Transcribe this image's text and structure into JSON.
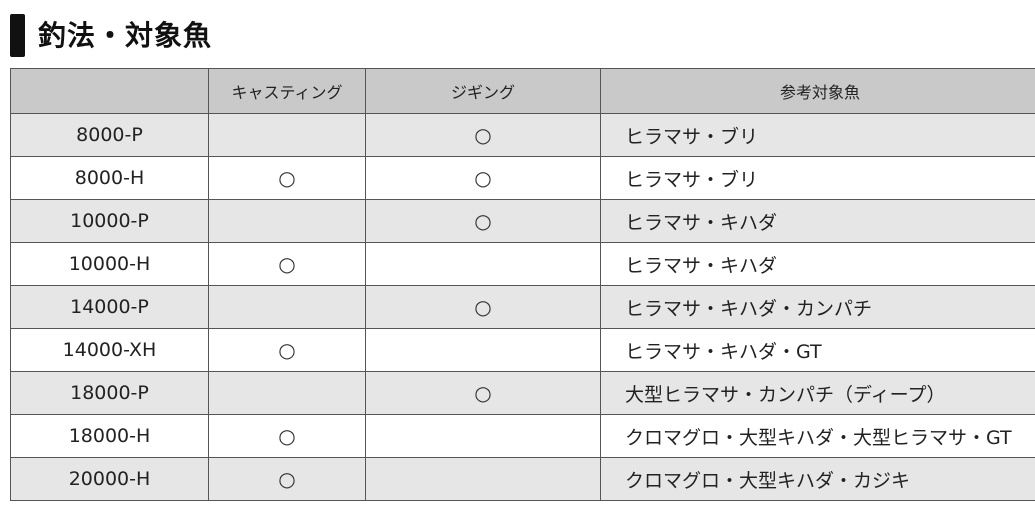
{
  "title": "釣法・対象魚",
  "table": {
    "headers": [
      "",
      "キャスティング",
      "ジギング",
      "参考対象魚"
    ],
    "rows": [
      {
        "model": "8000-P",
        "casting": "",
        "jigging": "○",
        "fish": "ヒラマサ・ブリ"
      },
      {
        "model": "8000-H",
        "casting": "○",
        "jigging": "○",
        "fish": "ヒラマサ・ブリ"
      },
      {
        "model": "10000-P",
        "casting": "",
        "jigging": "○",
        "fish": "ヒラマサ・キハダ"
      },
      {
        "model": "10000-H",
        "casting": "○",
        "jigging": "",
        "fish": "ヒラマサ・キハダ"
      },
      {
        "model": "14000-P",
        "casting": "",
        "jigging": "○",
        "fish": "ヒラマサ・キハダ・カンパチ"
      },
      {
        "model": "14000-XH",
        "casting": "○",
        "jigging": "",
        "fish": "ヒラマサ・キハダ・GT"
      },
      {
        "model": "18000-P",
        "casting": "",
        "jigging": "○",
        "fish": "大型ヒラマサ・カンパチ（ディープ）"
      },
      {
        "model": "18000-H",
        "casting": "○",
        "jigging": "",
        "fish": "クロマグロ・大型キハダ・大型ヒラマサ・GT"
      },
      {
        "model": "20000-H",
        "casting": "○",
        "jigging": "",
        "fish": "クロマグロ・大型キハダ・カジキ"
      }
    ]
  }
}
